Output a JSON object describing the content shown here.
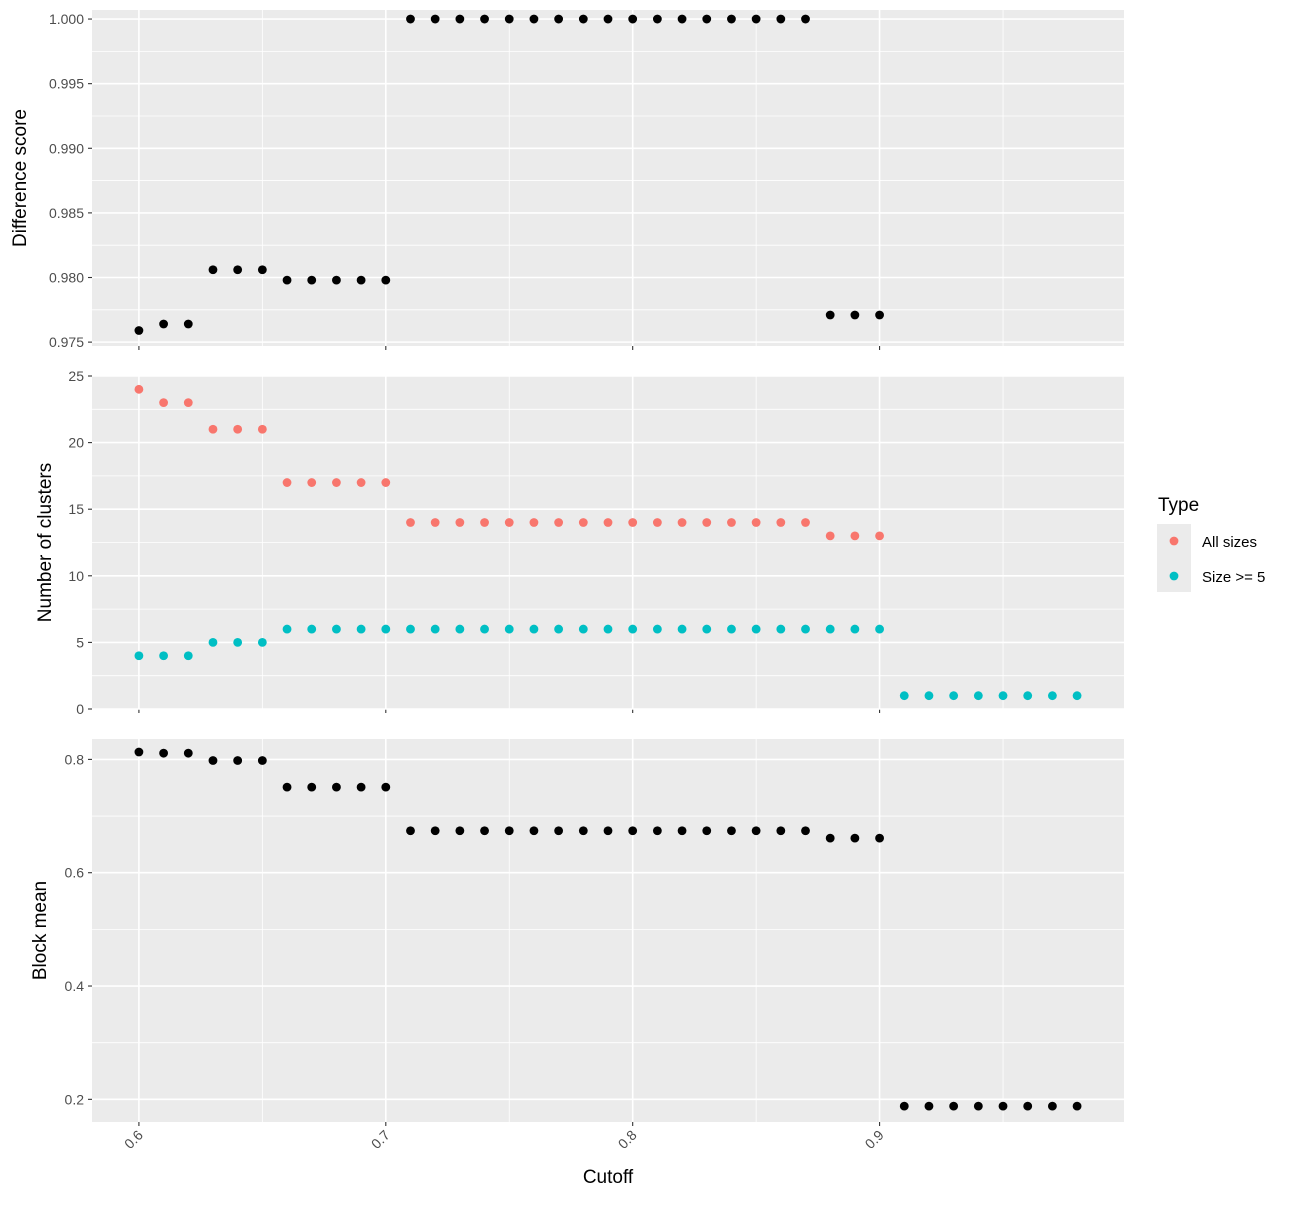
{
  "chart_data": {
    "type": "scatter",
    "x_label": "Cutoff",
    "x_ticks": [
      0.6,
      0.7,
      0.8,
      0.9
    ],
    "x_tick_labels": [
      "0.6",
      "0.7",
      "0.8",
      "0.9"
    ],
    "xlim": [
      0.581,
      0.999
    ],
    "grid": true,
    "legend": {
      "title": "Type",
      "position": "right",
      "entries": [
        {
          "label": "All sizes",
          "color": "#F8766D"
        },
        {
          "label": "Size >= 5",
          "color": "#00BFC4"
        }
      ]
    },
    "panels": [
      {
        "id": "difference",
        "ylabel": "Difference score",
        "ylim": [
          0.9747,
          1.0007
        ],
        "y_ticks": [
          0.975,
          0.98,
          0.985,
          0.99,
          0.995,
          1.0
        ],
        "y_tick_labels": [
          "0.975",
          "0.980",
          "0.985",
          "0.990",
          "0.995",
          "1.000"
        ],
        "series": [
          {
            "color": "#000000",
            "x": [
              0.6,
              0.61,
              0.62,
              0.63,
              0.64,
              0.65,
              0.66,
              0.67,
              0.68,
              0.69,
              0.7,
              0.71,
              0.72,
              0.73,
              0.74,
              0.75,
              0.76,
              0.77,
              0.78,
              0.79,
              0.8,
              0.81,
              0.82,
              0.83,
              0.84,
              0.85,
              0.86,
              0.87,
              0.88,
              0.89,
              0.9
            ],
            "y": [
              0.9759,
              0.9764,
              0.9764,
              0.9806,
              0.9806,
              0.9806,
              0.9798,
              0.9798,
              0.9798,
              0.9798,
              0.9798,
              1.0,
              1.0,
              1.0,
              1.0,
              1.0,
              1.0,
              1.0,
              1.0,
              1.0,
              1.0,
              1.0,
              1.0,
              1.0,
              1.0,
              1.0,
              1.0,
              1.0,
              0.9771,
              0.9771,
              0.9771
            ]
          }
        ]
      },
      {
        "id": "clusters",
        "ylabel": "Number of clusters",
        "ylim": [
          0,
          25
        ],
        "y_ticks": [
          0,
          5,
          10,
          15,
          20,
          25
        ],
        "y_tick_labels": [
          "0",
          "5",
          "10",
          "15",
          "20",
          "25"
        ],
        "series": [
          {
            "name": "All sizes",
            "color": "#F8766D",
            "x": [
              0.6,
              0.61,
              0.62,
              0.63,
              0.64,
              0.65,
              0.66,
              0.67,
              0.68,
              0.69,
              0.7,
              0.71,
              0.72,
              0.73,
              0.74,
              0.75,
              0.76,
              0.77,
              0.78,
              0.79,
              0.8,
              0.81,
              0.82,
              0.83,
              0.84,
              0.85,
              0.86,
              0.87,
              0.88,
              0.89,
              0.9
            ],
            "y": [
              24,
              23,
              23,
              21,
              21,
              21,
              17,
              17,
              17,
              17,
              17,
              14,
              14,
              14,
              14,
              14,
              14,
              14,
              14,
              14,
              14,
              14,
              14,
              14,
              14,
              14,
              14,
              14,
              13,
              13,
              13
            ]
          },
          {
            "name": "Size >= 5",
            "color": "#00BFC4",
            "x": [
              0.6,
              0.61,
              0.62,
              0.63,
              0.64,
              0.65,
              0.66,
              0.67,
              0.68,
              0.69,
              0.7,
              0.71,
              0.72,
              0.73,
              0.74,
              0.75,
              0.76,
              0.77,
              0.78,
              0.79,
              0.8,
              0.81,
              0.82,
              0.83,
              0.84,
              0.85,
              0.86,
              0.87,
              0.88,
              0.89,
              0.9,
              0.91,
              0.92,
              0.93,
              0.94,
              0.95,
              0.96,
              0.97,
              0.98
            ],
            "y": [
              4,
              4,
              4,
              5,
              5,
              5,
              6,
              6,
              6,
              6,
              6,
              6,
              6,
              6,
              6,
              6,
              6,
              6,
              6,
              6,
              6,
              6,
              6,
              6,
              6,
              6,
              6,
              6,
              6,
              6,
              6,
              1,
              1,
              1,
              1,
              1,
              1,
              1,
              1
            ]
          }
        ]
      },
      {
        "id": "blockmean",
        "ylabel": "Block mean",
        "ylim": [
          0.16,
          0.836
        ],
        "y_ticks": [
          0.2,
          0.4,
          0.6,
          0.8
        ],
        "y_tick_labels": [
          "0.2",
          "0.4",
          "0.6",
          "0.8"
        ],
        "series": [
          {
            "color": "#000000",
            "x": [
              0.6,
              0.61,
              0.62,
              0.63,
              0.64,
              0.65,
              0.66,
              0.67,
              0.68,
              0.69,
              0.7,
              0.71,
              0.72,
              0.73,
              0.74,
              0.75,
              0.76,
              0.77,
              0.78,
              0.79,
              0.8,
              0.81,
              0.82,
              0.83,
              0.84,
              0.85,
              0.86,
              0.87,
              0.88,
              0.89,
              0.9,
              0.91,
              0.92,
              0.93,
              0.94,
              0.95,
              0.96,
              0.97,
              0.98
            ],
            "y": [
              0.813,
              0.811,
              0.811,
              0.798,
              0.798,
              0.798,
              0.751,
              0.751,
              0.751,
              0.751,
              0.751,
              0.674,
              0.674,
              0.674,
              0.674,
              0.674,
              0.674,
              0.674,
              0.674,
              0.674,
              0.674,
              0.674,
              0.674,
              0.674,
              0.674,
              0.674,
              0.674,
              0.674,
              0.661,
              0.661,
              0.661,
              0.188,
              0.188,
              0.188,
              0.188,
              0.188,
              0.188,
              0.188,
              0.188
            ]
          }
        ]
      }
    ]
  }
}
